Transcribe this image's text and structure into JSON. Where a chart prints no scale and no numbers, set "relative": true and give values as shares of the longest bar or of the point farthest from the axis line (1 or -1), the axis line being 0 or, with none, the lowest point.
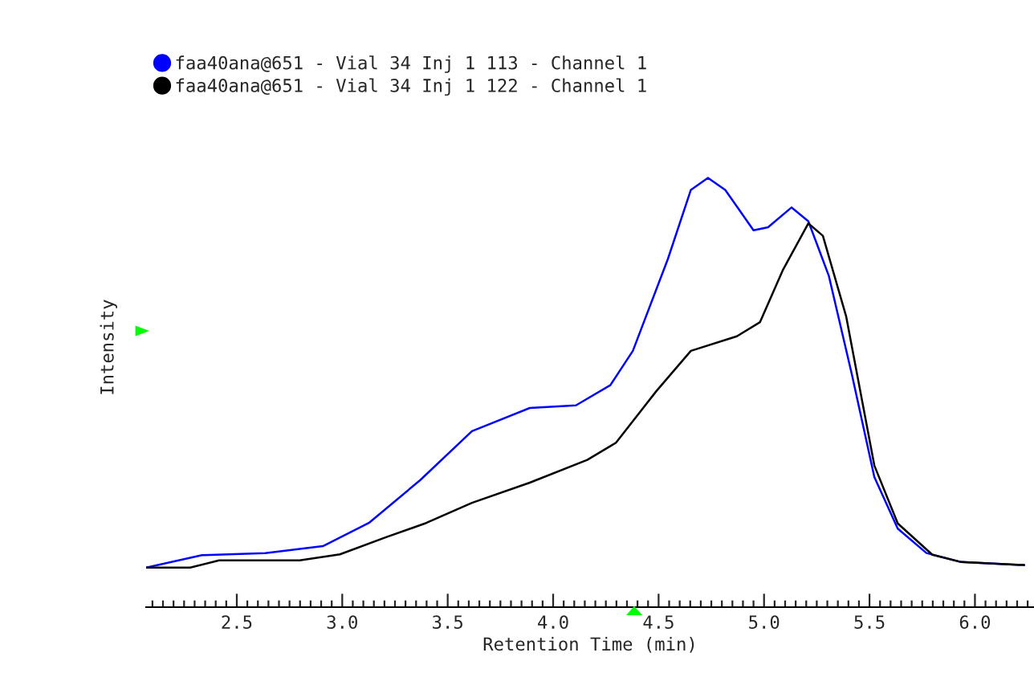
{
  "chart_data": {
    "type": "line",
    "relative": true,
    "xlabel": "Retention Time (min)",
    "ylabel": "Intensity",
    "legend": "top left",
    "grid": false,
    "marker": "none",
    "line_style": "solid",
    "tick_labels": "x",
    "xlim": [
      2.07,
      6.28
    ],
    "xticks": [
      {
        "value": 2.1,
        "label": null
      },
      {
        "value": 2.15,
        "label": null
      },
      {
        "value": 2.2,
        "label": null
      },
      {
        "value": 2.25,
        "label": null
      },
      {
        "value": 2.3,
        "label": null
      },
      {
        "value": 2.35,
        "label": null
      },
      {
        "value": 2.4,
        "label": null
      },
      {
        "value": 2.45,
        "label": null
      },
      2.5,
      {
        "value": 2.55,
        "label": null
      },
      {
        "value": 2.6,
        "label": null
      },
      {
        "value": 2.65,
        "label": null
      },
      {
        "value": 2.7,
        "label": null
      },
      {
        "value": 2.75,
        "label": null
      },
      {
        "value": 2.8,
        "label": null
      },
      {
        "value": 2.85,
        "label": null
      },
      {
        "value": 2.9,
        "label": null
      },
      {
        "value": 2.95,
        "label": null
      },
      {
        "value": 3.0,
        "label": "3.0"
      },
      {
        "value": 3.05,
        "label": null
      },
      {
        "value": 3.1,
        "label": null
      },
      {
        "value": 3.15,
        "label": null
      },
      {
        "value": 3.2,
        "label": null
      },
      {
        "value": 3.25,
        "label": null
      },
      {
        "value": 3.3,
        "label": null
      },
      {
        "value": 3.35,
        "label": null
      },
      {
        "value": 3.4,
        "label": null
      },
      {
        "value": 3.45,
        "label": null
      },
      3.5,
      {
        "value": 3.55,
        "label": null
      },
      {
        "value": 3.6,
        "label": null
      },
      {
        "value": 3.65,
        "label": null
      },
      {
        "value": 3.7,
        "label": null
      },
      {
        "value": 3.75,
        "label": null
      },
      {
        "value": 3.8,
        "label": null
      },
      {
        "value": 3.85,
        "label": null
      },
      {
        "value": 3.9,
        "label": null
      },
      {
        "value": 3.95,
        "label": null
      },
      {
        "value": 4.0,
        "label": "4.0"
      },
      {
        "value": 4.05,
        "label": null
      },
      {
        "value": 4.1,
        "label": null
      },
      {
        "value": 4.15,
        "label": null
      },
      {
        "value": 4.2,
        "label": null
      },
      {
        "value": 4.25,
        "label": null
      },
      {
        "value": 4.3,
        "label": null
      },
      {
        "value": 4.35,
        "label": null
      },
      {
        "value": 4.4,
        "label": null
      },
      {
        "value": 4.45,
        "label": null
      },
      4.5,
      {
        "value": 4.55,
        "label": null
      },
      {
        "value": 4.6,
        "label": null
      },
      {
        "value": 4.65,
        "label": null
      },
      {
        "value": 4.7,
        "label": null
      },
      {
        "value": 4.75,
        "label": null
      },
      {
        "value": 4.8,
        "label": null
      },
      {
        "value": 4.85,
        "label": null
      },
      {
        "value": 4.9,
        "label": null
      },
      {
        "value": 4.95,
        "label": null
      },
      {
        "value": 5.0,
        "label": "5.0"
      },
      {
        "value": 5.05,
        "label": null
      },
      {
        "value": 5.1,
        "label": null
      },
      {
        "value": 5.15,
        "label": null
      },
      {
        "value": 5.2,
        "label": null
      },
      {
        "value": 5.25,
        "label": null
      },
      {
        "value": 5.3,
        "label": null
      },
      {
        "value": 5.35,
        "label": null
      },
      {
        "value": 5.4,
        "label": null
      },
      {
        "value": 5.45,
        "label": null
      },
      5.5,
      {
        "value": 5.55,
        "label": null
      },
      {
        "value": 5.6,
        "label": null
      },
      {
        "value": 5.65,
        "label": null
      },
      {
        "value": 5.7,
        "label": null
      },
      {
        "value": 5.75,
        "label": null
      },
      {
        "value": 5.8,
        "label": null
      },
      {
        "value": 5.85,
        "label": null
      },
      {
        "value": 5.9,
        "label": null
      },
      {
        "value": 5.95,
        "label": null
      },
      {
        "value": 6.0,
        "label": "6.0"
      },
      {
        "value": 6.05,
        "label": null
      },
      {
        "value": 6.1,
        "label": null
      },
      {
        "value": 6.15,
        "label": null
      },
      {
        "value": 6.2,
        "label": null
      },
      {
        "value": 6.25,
        "label": null
      }
    ],
    "series": [
      {
        "name": "faa40ana@651 - Vial 34 Inj 1 113 - Channel 1",
        "color": "#0000ff",
        "x": [
          2.07,
          2.335,
          2.635,
          2.908,
          3.126,
          3.37,
          3.615,
          3.889,
          4.108,
          4.271,
          4.378,
          4.544,
          4.653,
          4.734,
          4.816,
          4.95,
          5.019,
          5.13,
          5.21,
          5.307,
          5.416,
          5.523,
          5.634,
          5.77,
          5.935,
          6.233
        ],
        "values": [
          0.092,
          0.121,
          0.126,
          0.142,
          0.196,
          0.296,
          0.41,
          0.464,
          0.47,
          0.517,
          0.597,
          0.811,
          0.972,
          1.0,
          0.972,
          0.878,
          0.885,
          0.931,
          0.899,
          0.772,
          0.543,
          0.303,
          0.183,
          0.126,
          0.105,
          0.098
        ]
      },
      {
        "name": "faa40ana@651 - Vial 34 Inj 1 122 - Channel 1",
        "color": "#000000",
        "x": [
          2.07,
          2.279,
          2.416,
          2.798,
          2.989,
          3.208,
          3.398,
          3.615,
          3.889,
          4.162,
          4.298,
          4.489,
          4.653,
          4.871,
          4.981,
          5.088,
          5.21,
          5.279,
          5.389,
          5.523,
          5.634,
          5.798,
          5.935,
          6.233
        ],
        "values": [
          0.092,
          0.092,
          0.109,
          0.109,
          0.123,
          0.163,
          0.196,
          0.243,
          0.29,
          0.343,
          0.383,
          0.503,
          0.597,
          0.631,
          0.664,
          0.784,
          0.894,
          0.865,
          0.678,
          0.33,
          0.195,
          0.122,
          0.105,
          0.098
        ]
      }
    ]
  }
}
